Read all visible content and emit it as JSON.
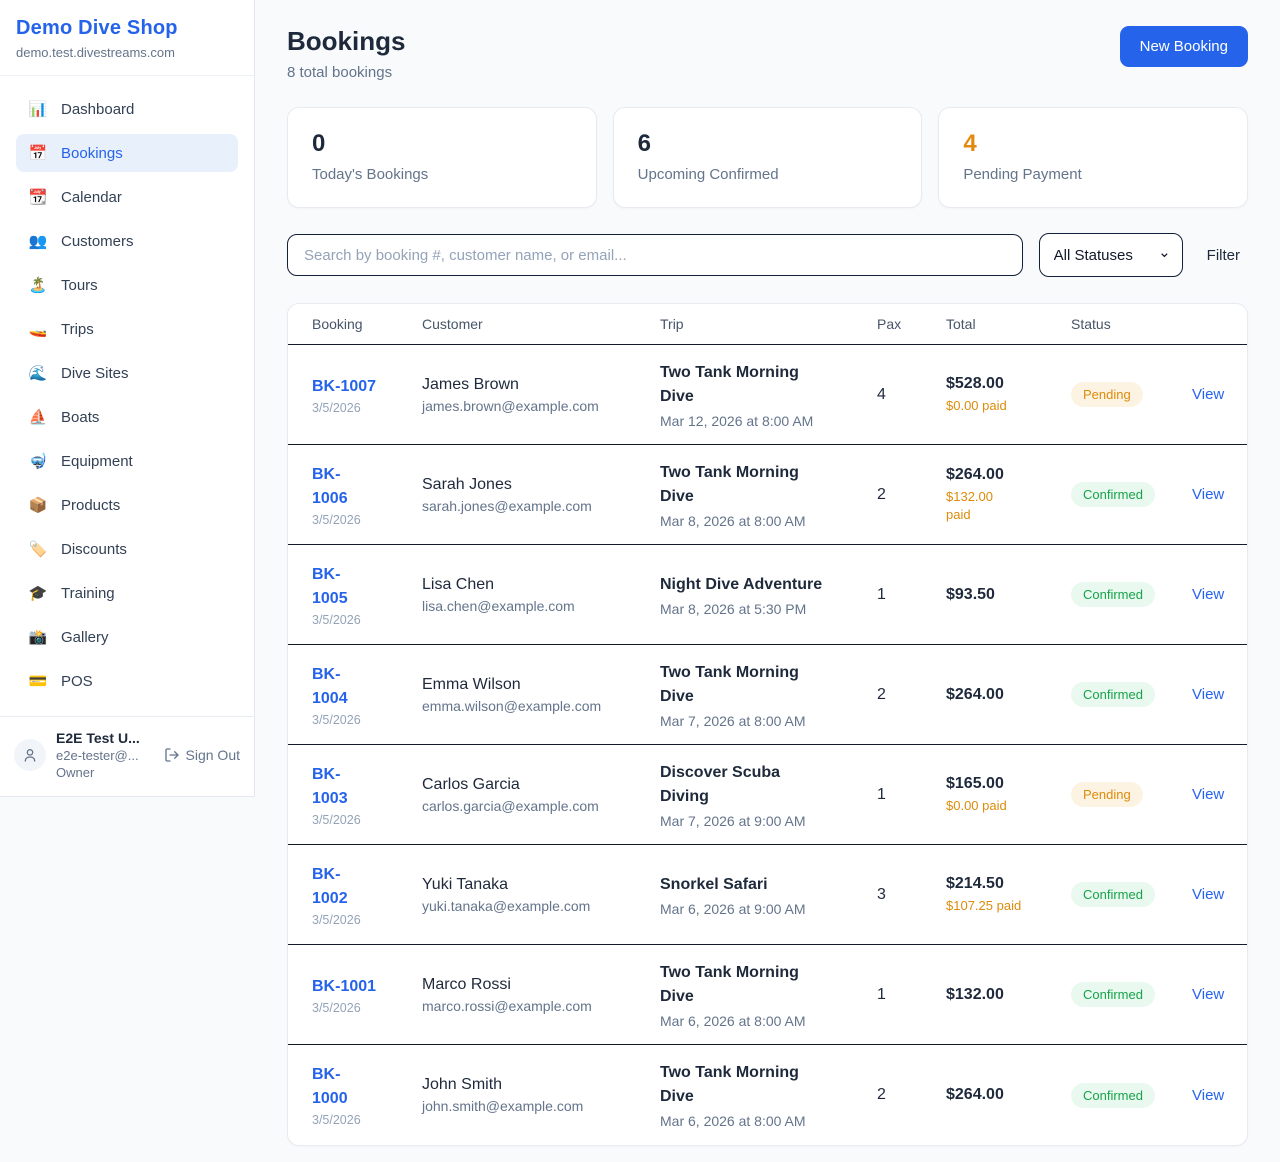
{
  "sidebar": {
    "brand": {
      "name": "Demo Dive Shop",
      "domain": "demo.test.divestreams.com"
    },
    "items": [
      {
        "slug": "dashboard",
        "icon": "📊",
        "icon_name": "bar-chart-icon",
        "label": "Dashboard",
        "active": false
      },
      {
        "slug": "bookings",
        "icon": "📅",
        "icon_name": "calendar-icon",
        "label": "Bookings",
        "active": true
      },
      {
        "slug": "calendar",
        "icon": "📆",
        "icon_name": "tear-calendar-icon",
        "label": "Calendar",
        "active": false
      },
      {
        "slug": "customers",
        "icon": "👥",
        "icon_name": "users-icon",
        "label": "Customers",
        "active": false
      },
      {
        "slug": "tours",
        "icon": "🏝️",
        "icon_name": "island-icon",
        "label": "Tours",
        "active": false
      },
      {
        "slug": "trips",
        "icon": "🚤",
        "icon_name": "speedboat-icon",
        "label": "Trips",
        "active": false
      },
      {
        "slug": "dive-sites",
        "icon": "🌊",
        "icon_name": "wave-icon",
        "label": "Dive Sites",
        "active": false
      },
      {
        "slug": "boats",
        "icon": "⛵",
        "icon_name": "sailboat-icon",
        "label": "Boats",
        "active": false
      },
      {
        "slug": "equipment",
        "icon": "🤿",
        "icon_name": "diving-mask-icon",
        "label": "Equipment",
        "active": false
      },
      {
        "slug": "products",
        "icon": "📦",
        "icon_name": "package-icon",
        "label": "Products",
        "active": false
      },
      {
        "slug": "discounts",
        "icon": "🏷️",
        "icon_name": "tag-icon",
        "label": "Discounts",
        "active": false
      },
      {
        "slug": "training",
        "icon": "🎓",
        "icon_name": "graduation-cap-icon",
        "label": "Training",
        "active": false
      },
      {
        "slug": "gallery",
        "icon": "📸",
        "icon_name": "camera-icon",
        "label": "Gallery",
        "active": false
      },
      {
        "slug": "pos",
        "icon": "💳",
        "icon_name": "credit-card-icon",
        "label": "POS",
        "active": false
      }
    ],
    "user": {
      "name": "E2E Test U...",
      "email": "e2e-tester@...",
      "role": "Owner",
      "sign_out_label": "Sign Out"
    }
  },
  "header": {
    "title": "Bookings",
    "subtitle": "8 total bookings",
    "new_booking_label": "New Booking"
  },
  "stats": [
    {
      "value": "0",
      "label": "Today's Bookings",
      "highlight": false
    },
    {
      "value": "6",
      "label": "Upcoming Confirmed",
      "highlight": false
    },
    {
      "value": "4",
      "label": "Pending Payment",
      "highlight": true
    }
  ],
  "filters": {
    "search_placeholder": "Search by booking #, customer name, or email...",
    "status_selected": "All Statuses",
    "filter_label": "Filter"
  },
  "table": {
    "columns": [
      "Booking",
      "Customer",
      "Trip",
      "Pax",
      "Total",
      "Status"
    ],
    "view_label": "View",
    "rows": [
      {
        "id": "BK-1007",
        "date": "3/5/2026",
        "customer": "James Brown",
        "email": "james.brown@example.com",
        "trip": "Two Tank Morning\nDive",
        "trip_datetime": "Mar 12, 2026 at 8:00 AM",
        "pax": "4",
        "total": "$528.00",
        "paid": "$0.00 paid",
        "status": "Pending"
      },
      {
        "id": "BK-\n1006",
        "date": "3/5/2026",
        "customer": "Sarah Jones",
        "email": "sarah.jones@example.com",
        "trip": "Two Tank Morning\nDive",
        "trip_datetime": "Mar 8, 2026 at 8:00 AM",
        "pax": "2",
        "total": "$264.00",
        "paid": "$132.00\npaid",
        "status": "Confirmed"
      },
      {
        "id": "BK-\n1005",
        "date": "3/5/2026",
        "customer": "Lisa Chen",
        "email": "lisa.chen@example.com",
        "trip": "Night Dive Adventure",
        "trip_datetime": "Mar 8, 2026 at 5:30 PM",
        "pax": "1",
        "total": "$93.50",
        "paid": null,
        "status": "Confirmed"
      },
      {
        "id": "BK-\n1004",
        "date": "3/5/2026",
        "customer": "Emma Wilson",
        "email": "emma.wilson@example.com",
        "trip": "Two Tank Morning\nDive",
        "trip_datetime": "Mar 7, 2026 at 8:00 AM",
        "pax": "2",
        "total": "$264.00",
        "paid": null,
        "status": "Confirmed"
      },
      {
        "id": "BK-\n1003",
        "date": "3/5/2026",
        "customer": "Carlos Garcia",
        "email": "carlos.garcia@example.com",
        "trip": "Discover Scuba\nDiving",
        "trip_datetime": "Mar 7, 2026 at 9:00 AM",
        "pax": "1",
        "total": "$165.00",
        "paid": "$0.00 paid",
        "status": "Pending"
      },
      {
        "id": "BK-\n1002",
        "date": "3/5/2026",
        "customer": "Yuki Tanaka",
        "email": "yuki.tanaka@example.com",
        "trip": "Snorkel Safari",
        "trip_datetime": "Mar 6, 2026 at 9:00 AM",
        "pax": "3",
        "total": "$214.50",
        "paid": "$107.25 paid",
        "status": "Confirmed"
      },
      {
        "id": "BK-1001",
        "date": "3/5/2026",
        "customer": "Marco Rossi",
        "email": "marco.rossi@example.com",
        "trip": "Two Tank Morning\nDive",
        "trip_datetime": "Mar 6, 2026 at 8:00 AM",
        "pax": "1",
        "total": "$132.00",
        "paid": null,
        "status": "Confirmed"
      },
      {
        "id": "BK-\n1000",
        "date": "3/5/2026",
        "customer": "John Smith",
        "email": "john.smith@example.com",
        "trip": "Two Tank Morning\nDive",
        "trip_datetime": "Mar 6, 2026 at 8:00 AM",
        "pax": "2",
        "total": "$264.00",
        "paid": null,
        "status": "Confirmed"
      }
    ]
  },
  "colors": {
    "accent_blue": "#2563eb",
    "orange": "#dd8b0b",
    "green": "#17a34a",
    "pending_badge_bg": "#fdf3e3",
    "confirmed_badge_bg": "#e9f9ef"
  }
}
